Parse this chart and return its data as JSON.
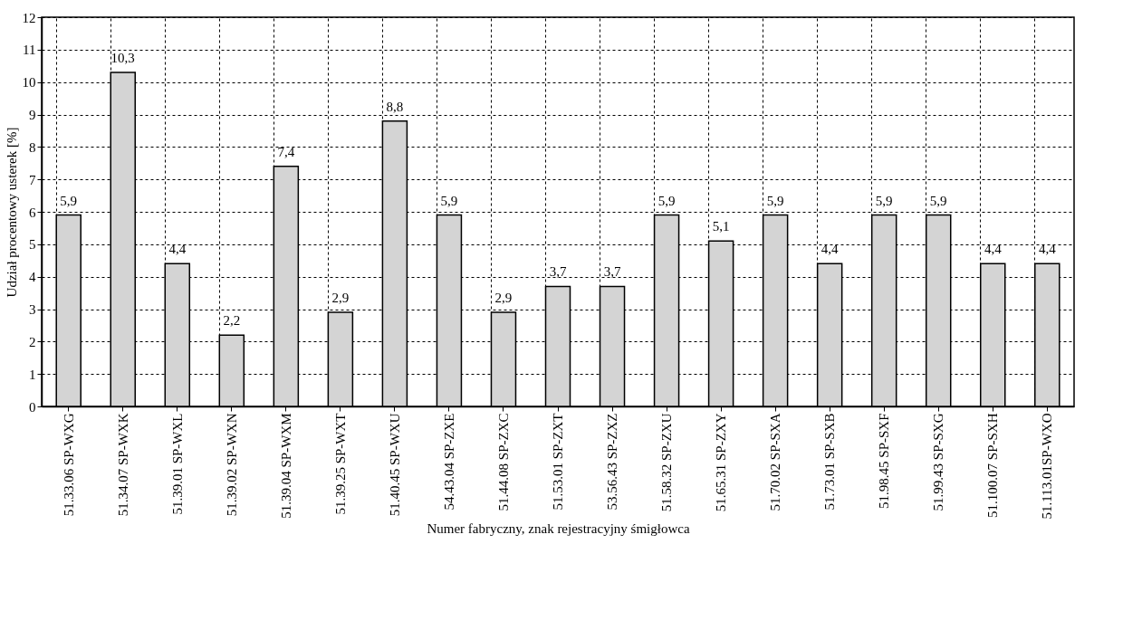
{
  "chart_data": {
    "type": "bar",
    "xlabel": "Numer fabryczny, znak rejestracyjny śmigłowca",
    "ylabel": "Udział procentowy usterek [%]",
    "categories": [
      "51.33.06 SP-WXG",
      "51.34.07 SP-WXK",
      "51.39.01 SP-WXL",
      "51.39.02 SP-WXN",
      "51.39.04 SP-WXM",
      "51.39.25 SP-WXT",
      "51.40.45 SP-WXU",
      "54.43.04 SP-ZXE",
      "51.44.08 SP-ZXC",
      "51.53.01 SP-ZXT",
      "53.56.43 SP-ZXZ",
      "51.58.32 SP-ZXU",
      "51.65.31 SP-ZXY",
      "51.70.02 SP-SXA",
      "51.73.01 SP-SXB",
      "51.98.45 SP-SXF",
      "51.99.43 SP-SXG",
      "51.100.07 SP-SXH",
      "51.113.01SP-WXO"
    ],
    "values": [
      5.9,
      10.3,
      4.4,
      2.2,
      7.4,
      2.9,
      8.8,
      5.9,
      2.9,
      3.7,
      3.7,
      5.9,
      5.1,
      5.9,
      4.4,
      5.9,
      5.9,
      4.4,
      4.4
    ],
    "value_labels": [
      "5,9",
      "10,3",
      "4,4",
      "2,2",
      "7,4",
      "2,9",
      "8,8",
      "5,9",
      "2,9",
      "3,7",
      "3,7",
      "5,9",
      "5,1",
      "5,9",
      "4,4",
      "5,9",
      "5,9",
      "4,4",
      "4,4"
    ],
    "color": "#d4d4d4",
    "ylim": [
      0,
      12
    ],
    "yticks": [
      0,
      1,
      2,
      3,
      4,
      5,
      6,
      7,
      8,
      9,
      10,
      11,
      12
    ],
    "grid": true
  }
}
